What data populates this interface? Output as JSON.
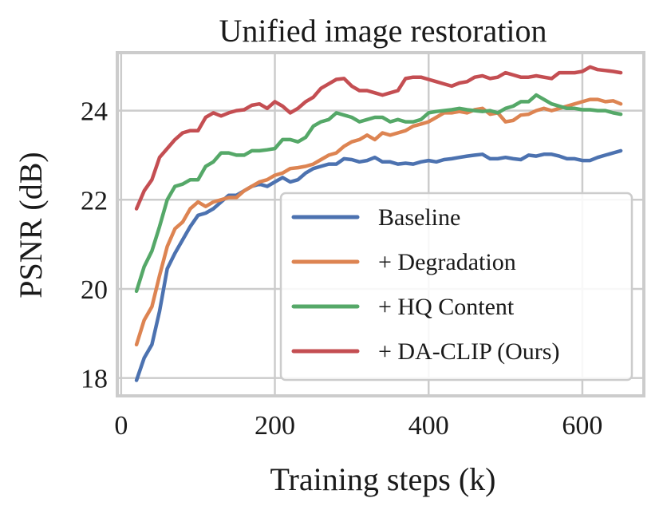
{
  "chart_data": {
    "type": "line",
    "title": "Unified image restoration",
    "xlabel": "Training steps (k)",
    "ylabel": "PSNR (dB)",
    "xlim": [
      -5,
      680
    ],
    "ylim": [
      17.6,
      25.3
    ],
    "xticks": [
      0,
      200,
      400,
      600
    ],
    "yticks": [
      18,
      20,
      22,
      24
    ],
    "grid": true,
    "legend_position": "lower-right",
    "x": [
      20,
      30,
      40,
      50,
      60,
      70,
      80,
      90,
      100,
      110,
      120,
      130,
      140,
      150,
      160,
      170,
      180,
      190,
      200,
      210,
      220,
      230,
      240,
      250,
      260,
      270,
      280,
      290,
      300,
      310,
      320,
      330,
      340,
      350,
      360,
      370,
      380,
      390,
      400,
      410,
      420,
      430,
      440,
      450,
      460,
      470,
      480,
      490,
      500,
      510,
      520,
      530,
      540,
      550,
      560,
      570,
      580,
      590,
      600,
      610,
      620,
      630,
      640,
      650
    ],
    "series": [
      {
        "name": "Baseline",
        "color": "#4c72b0",
        "values": [
          17.95,
          18.45,
          18.75,
          19.5,
          20.45,
          20.8,
          21.1,
          21.4,
          21.65,
          21.7,
          21.8,
          21.95,
          22.1,
          22.1,
          22.2,
          22.3,
          22.35,
          22.3,
          22.4,
          22.5,
          22.4,
          22.45,
          22.6,
          22.7,
          22.75,
          22.8,
          22.8,
          22.92,
          22.9,
          22.85,
          22.88,
          22.95,
          22.85,
          22.85,
          22.8,
          22.82,
          22.8,
          22.85,
          22.88,
          22.85,
          22.9,
          22.92,
          22.95,
          22.98,
          23.0,
          23.02,
          22.92,
          22.92,
          22.95,
          22.92,
          22.9,
          23.0,
          22.98,
          23.02,
          23.02,
          22.98,
          22.92,
          22.92,
          22.88,
          22.88,
          22.95,
          23.0,
          23.05,
          23.1
        ]
      },
      {
        "name": "+ Degradation",
        "color": "#dd8452",
        "values": [
          18.75,
          19.3,
          19.6,
          20.3,
          20.95,
          21.35,
          21.5,
          21.8,
          21.95,
          21.85,
          21.95,
          22.0,
          22.05,
          22.05,
          22.2,
          22.3,
          22.4,
          22.45,
          22.55,
          22.6,
          22.7,
          22.72,
          22.75,
          22.8,
          22.9,
          23.0,
          23.05,
          23.2,
          23.3,
          23.35,
          23.45,
          23.35,
          23.5,
          23.45,
          23.5,
          23.55,
          23.65,
          23.7,
          23.75,
          23.85,
          23.95,
          23.95,
          23.98,
          23.95,
          24.02,
          24.05,
          23.92,
          23.95,
          23.75,
          23.78,
          23.9,
          23.92,
          24.0,
          24.05,
          24.0,
          24.05,
          24.1,
          24.15,
          24.2,
          24.25,
          24.25,
          24.2,
          24.22,
          24.15
        ]
      },
      {
        "name": "+ HQ Content",
        "color": "#55a868",
        "values": [
          19.95,
          20.5,
          20.85,
          21.4,
          22.0,
          22.3,
          22.35,
          22.45,
          22.45,
          22.75,
          22.85,
          23.05,
          23.05,
          23.0,
          23.0,
          23.1,
          23.1,
          23.12,
          23.15,
          23.35,
          23.35,
          23.3,
          23.4,
          23.65,
          23.75,
          23.8,
          23.95,
          23.9,
          23.85,
          23.75,
          23.8,
          23.85,
          23.85,
          23.75,
          23.8,
          23.75,
          23.75,
          23.8,
          23.95,
          23.98,
          24.0,
          24.02,
          24.05,
          24.02,
          24.0,
          23.98,
          24.0,
          23.95,
          24.05,
          24.1,
          24.2,
          24.2,
          24.35,
          24.25,
          24.15,
          24.1,
          24.05,
          24.05,
          24.02,
          24.02,
          24.0,
          24.0,
          23.95,
          23.92
        ]
      },
      {
        "name": "+ DA-CLIP (Ours)",
        "color": "#c44e52",
        "values": [
          21.8,
          22.2,
          22.45,
          22.95,
          23.15,
          23.35,
          23.5,
          23.55,
          23.55,
          23.85,
          23.95,
          23.88,
          23.95,
          24.0,
          24.02,
          24.12,
          24.15,
          24.05,
          24.2,
          24.1,
          23.95,
          24.05,
          24.2,
          24.3,
          24.5,
          24.6,
          24.7,
          24.72,
          24.55,
          24.45,
          24.45,
          24.4,
          24.35,
          24.4,
          24.45,
          24.72,
          24.75,
          24.75,
          24.7,
          24.65,
          24.6,
          24.55,
          24.62,
          24.65,
          24.75,
          24.78,
          24.72,
          24.75,
          24.85,
          24.8,
          24.75,
          24.75,
          24.78,
          24.75,
          24.72,
          24.85,
          24.85,
          24.85,
          24.88,
          24.98,
          24.92,
          24.9,
          24.88,
          24.85
        ]
      }
    ]
  }
}
